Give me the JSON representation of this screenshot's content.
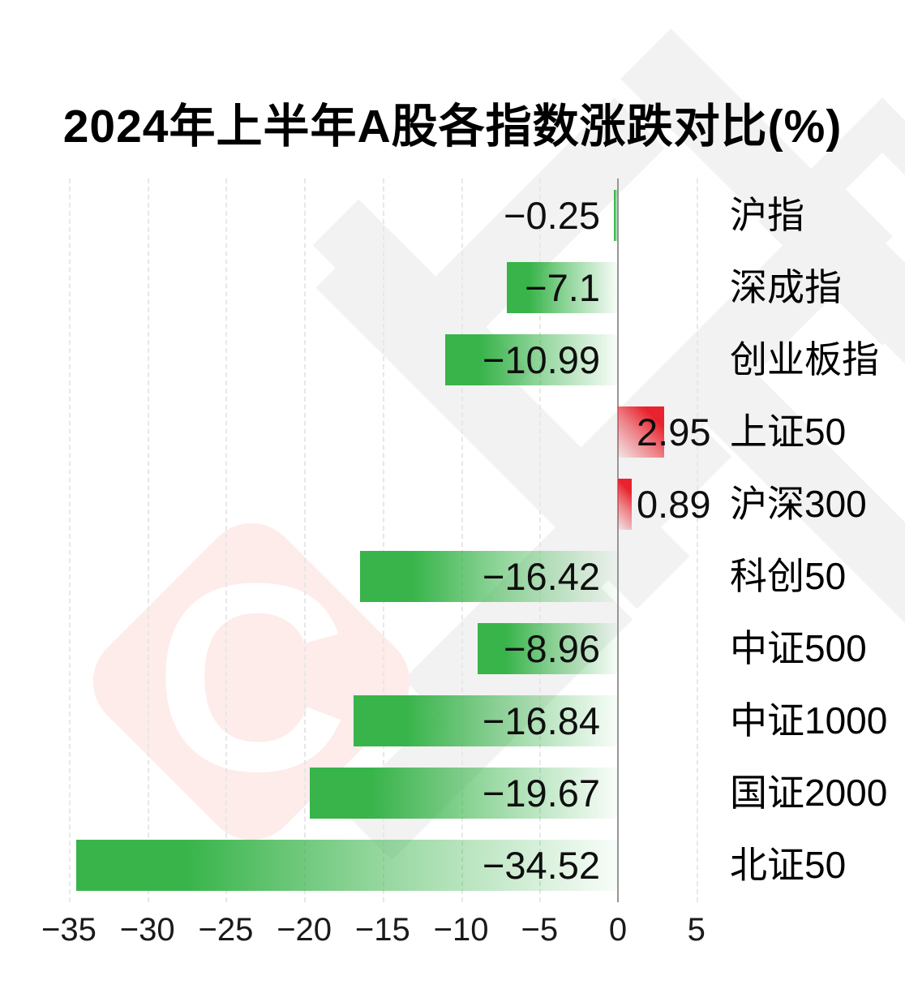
{
  "title": "2024年上半年A股各指数涨跌对比(%)",
  "watermark": {
    "letter": "C"
  },
  "colors": {
    "negative_bar": "#38b44a",
    "positive_bar": "#e9232e",
    "zero_line": "#969696",
    "grid_line": "#e7e7e7",
    "label_text": "#0f0f0f",
    "watermark_gray": "#f2f2f2",
    "watermark_pink": "#fdecea"
  },
  "chart_data": {
    "type": "bar",
    "orientation": "horizontal",
    "title": "2024年上半年A股各指数涨跌对比(%)",
    "unit": "%",
    "categories": [
      "沪指",
      "深成指",
      "创业板指",
      "上证50",
      "沪深300",
      "科创50",
      "中证500",
      "中证1000",
      "国证2000",
      "北证50"
    ],
    "values": [
      -0.25,
      -7.1,
      -10.99,
      2.95,
      0.89,
      -16.42,
      -8.96,
      -16.84,
      -19.67,
      -34.52
    ],
    "value_labels": [
      "−0.25",
      "−7.1",
      "−10.99",
      "2.95",
      "0.89",
      "−16.42",
      "−8.96",
      "−16.84",
      "−19.67",
      "−34.52"
    ],
    "x_ticks": [
      -35,
      -30,
      -25,
      -20,
      -15,
      -10,
      -5,
      0,
      5
    ],
    "x_tick_labels": [
      "−35",
      "−30",
      "−25",
      "−20",
      "−15",
      "−10",
      "−5",
      "0",
      "5"
    ],
    "xlim": [
      -36.2,
      6.6
    ],
    "grid": "dashed-vertical",
    "zero_line": true,
    "legend": null
  }
}
